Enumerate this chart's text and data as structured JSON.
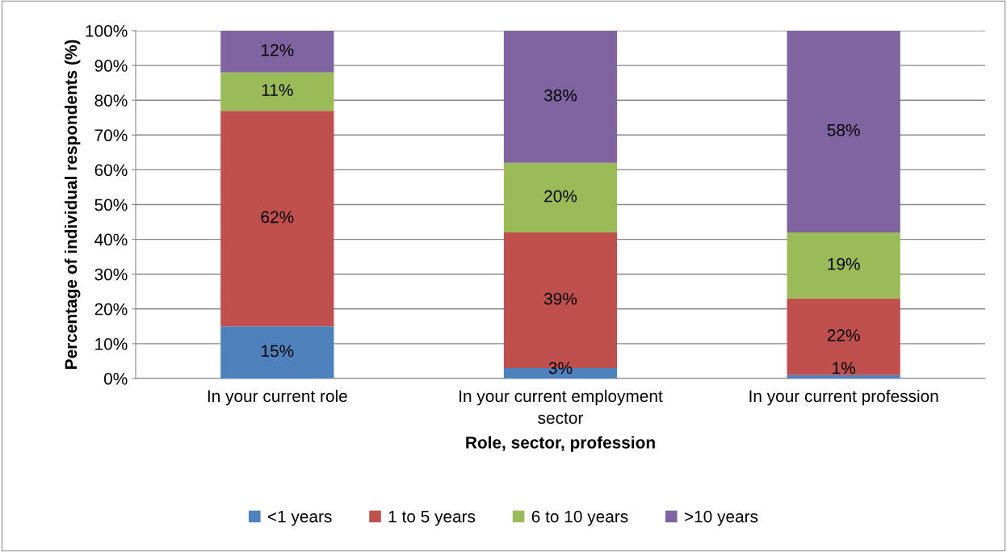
{
  "chart_data": {
    "type": "bar",
    "stacked": true,
    "xlabel": "Role, sector, profession",
    "ylabel": "Percentage of individual respondents (%)",
    "categories": [
      "In your current role",
      "In your current employment sector",
      "In your current profession"
    ],
    "series": [
      {
        "name": "<1 years",
        "color": "#4f81bd",
        "values": [
          15,
          3,
          1
        ],
        "value_labels": [
          "15%",
          "3%",
          "1%"
        ]
      },
      {
        "name": "1 to 5 years",
        "color": "#c0504d",
        "values": [
          62,
          39,
          22
        ],
        "value_labels": [
          "62%",
          "39%",
          "22%"
        ]
      },
      {
        "name": "6 to 10 years",
        "color": "#9bbb59",
        "values": [
          11,
          20,
          19
        ],
        "value_labels": [
          "11%",
          "20%",
          "19%"
        ]
      },
      {
        "name": ">10 years",
        "color": "#8064a2",
        "values": [
          12,
          38,
          58
        ],
        "value_labels": [
          "12%",
          "38%",
          "58%"
        ]
      }
    ],
    "ylim": [
      0,
      100
    ],
    "yticks": [
      {
        "value": 0,
        "label": "0%"
      },
      {
        "value": 10,
        "label": "10%"
      },
      {
        "value": 20,
        "label": "20%"
      },
      {
        "value": 30,
        "label": "30%"
      },
      {
        "value": 40,
        "label": "40%"
      },
      {
        "value": 50,
        "label": "50%"
      },
      {
        "value": 60,
        "label": "60%"
      },
      {
        "value": 70,
        "label": "70%"
      },
      {
        "value": 80,
        "label": "80%"
      },
      {
        "value": 90,
        "label": "90%"
      },
      {
        "value": 100,
        "label": "100%"
      }
    ],
    "grid": "y",
    "legend": "bottom"
  }
}
